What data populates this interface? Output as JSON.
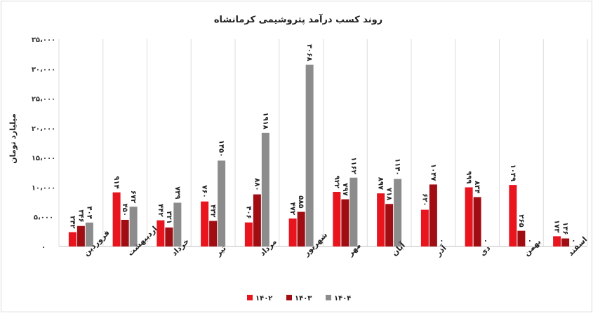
{
  "chart_data": {
    "type": "bar",
    "title": "روند کسب درآمد پتروشیمی کرمانشاه",
    "ylabel": "میلیارد تومان",
    "ylim": [
      0,
      35000
    ],
    "yticks": [
      0,
      5000,
      10000,
      15000,
      20000,
      25000,
      30000,
      35000
    ],
    "ytick_labels": [
      "۰",
      "۵،۰۰۰",
      "۱۰،۰۰۰",
      "۱۵،۰۰۰",
      "۲۰،۰۰۰",
      "۲۵،۰۰۰",
      "۳۰،۰۰۰",
      "۳۵،۰۰۰"
    ],
    "grid": "vertical separators",
    "legend_position": "bottom",
    "categories": [
      "فروردین",
      "اردیبهشت",
      "خرداد",
      "تیر",
      "مرداد",
      "شهریور",
      "مهر",
      "آبان",
      "آذر",
      "دی",
      "بهمن",
      "اسفند"
    ],
    "series": [
      {
        "name": "۱۴۰۲",
        "color": "#e8141e",
        "values": [
          2420,
          9140,
          4420,
          7600,
          4060,
          4720,
          9220,
          8970,
          6200,
          9990,
          10390,
          1730
        ],
        "labels": [
          "۲۴۲",
          "۹۱۴",
          "۴۴۲",
          "۷۶۰",
          "۴۰۶",
          "۴۷۲",
          "۹۲۲",
          "۸۹۷",
          "۶۲۰",
          "۹۹۹",
          "۱۰۳۹",
          "۱۷۳"
        ]
      },
      {
        "name": "۱۴۰۳",
        "color": "#a00d12",
        "values": [
          3460,
          4500,
          3210,
          4320,
          8800,
          5850,
          7970,
          7180,
          10470,
          8340,
          2650,
          1360
        ],
        "labels": [
          "۳۴۶",
          "۴۵۰",
          "۳۲۱",
          "۴۳۲",
          "۸۸۰",
          "۵۸۵",
          "۷۹۷",
          "۷۱۸",
          "۱۰۴۷",
          "۸۳۴",
          "۲۶۵",
          "۱۳۶"
        ]
      },
      {
        "name": "۱۴۰۴",
        "color": "#8c8c8c",
        "values": [
          4040,
          6720,
          7390,
          14500,
          19180,
          30680,
          11620,
          11400,
          0,
          0,
          0,
          0
        ],
        "labels": [
          "۴۰۴",
          "۶۷۲",
          "۷۳۹",
          "۱۴۵۰",
          "۱۹۱۸",
          "۳۰۶۸",
          "۱۱۶۲",
          "۱۱۴۰",
          "۰",
          "۰",
          "۰",
          "۰"
        ]
      }
    ]
  }
}
